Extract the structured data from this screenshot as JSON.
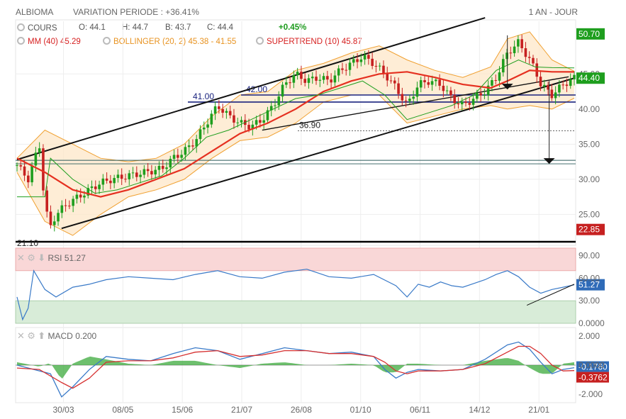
{
  "header": {
    "symbol": "ALBIOMA",
    "variation": "VARIATION PERIODE : +36.41%",
    "period": "1 AN - JOUR"
  },
  "legend": {
    "cours_label": "COURS",
    "open": "O: 44.1",
    "high": "H: 44.7",
    "low": "B: 43.7",
    "close": "C: 44.4",
    "change": "+0.45%",
    "mm": "MM (40)",
    "mm_value": "45.29",
    "bollinger": "BOLLINGER (20, 2)",
    "bollinger_value": "45.38 - 41.55",
    "supertrend": "SUPERTREND (10)",
    "supertrend_value": "45.87"
  },
  "rsi_panel": {
    "label": "RSI",
    "value": "51.27",
    "badge": "51.27"
  },
  "macd_panel": {
    "label": "MACD",
    "value": "0.200",
    "badge1": "-0.1760",
    "badge2": "-0.3762"
  },
  "colors": {
    "close": "#1e9e1e",
    "low": "#c62020",
    "current": "#1e9e1e",
    "mm": "#e53020",
    "bollinger": "#f0a030",
    "supertrend": "#1e9e1e",
    "rsi": "#3a7ac8",
    "macd_blue": "#3a7ac8",
    "macd_red": "#d63030",
    "histogram": "#3caa3c",
    "hline": "#1a237e"
  },
  "chart_data": [
    {
      "type": "candlestick",
      "title": "ALBIOMA",
      "x_ticks": [
        "30/03",
        "08/05",
        "15/06",
        "21/07",
        "26/08",
        "01/10",
        "06/11",
        "14/12",
        "21/01"
      ],
      "y_ticks": [
        "25.00",
        "30.00",
        "35.00",
        "40.00",
        "45.00"
      ],
      "ylim": [
        20.8,
        52.5
      ],
      "price_labels": {
        "high": "50.70",
        "current": "44.40",
        "low": "22.85"
      },
      "annotations": [
        {
          "text": "21.10",
          "value": 21.1
        },
        {
          "text": "41.00",
          "value": 41.0
        },
        {
          "text": "42.00",
          "value": 42.0
        },
        {
          "text": "36.90",
          "value": 36.9
        }
      ],
      "horizontal_levels": [
        21.1,
        41.0,
        42.0,
        36.9,
        32.7,
        32.2
      ],
      "trend_channel": {
        "upper": [
          [
            0.0,
            32.8
          ],
          [
            0.84,
            53.0
          ]
        ],
        "lower": [
          [
            0.08,
            23.0
          ],
          [
            1.0,
            44.4
          ]
        ],
        "inner": [
          [
            0.44,
            37.0
          ],
          [
            0.99,
            44.6
          ]
        ]
      },
      "close": [
        [
          0.0,
          32.0
        ],
        [
          0.02,
          30.0
        ],
        [
          0.03,
          32.5
        ],
        [
          0.04,
          35.0
        ],
        [
          0.05,
          26.0
        ],
        [
          0.06,
          23.2
        ],
        [
          0.07,
          25.0
        ],
        [
          0.09,
          26.5
        ],
        [
          0.11,
          27.5
        ],
        [
          0.13,
          28.5
        ],
        [
          0.15,
          29.5
        ],
        [
          0.17,
          30.0
        ],
        [
          0.2,
          30.5
        ],
        [
          0.23,
          31.0
        ],
        [
          0.26,
          31.5
        ],
        [
          0.28,
          33.0
        ],
        [
          0.3,
          34.0
        ],
        [
          0.32,
          35.5
        ],
        [
          0.34,
          38.0
        ],
        [
          0.36,
          40.5
        ],
        [
          0.38,
          39.0
        ],
        [
          0.4,
          38.0
        ],
        [
          0.42,
          37.5
        ],
        [
          0.44,
          38.5
        ],
        [
          0.46,
          40.5
        ],
        [
          0.48,
          43.5
        ],
        [
          0.5,
          45.0
        ],
        [
          0.52,
          44.0
        ],
        [
          0.54,
          44.5
        ],
        [
          0.56,
          44.0
        ],
        [
          0.58,
          45.5
        ],
        [
          0.6,
          46.5
        ],
        [
          0.62,
          47.5
        ],
        [
          0.64,
          46.5
        ],
        [
          0.66,
          45.0
        ],
        [
          0.68,
          43.0
        ],
        [
          0.7,
          40.5
        ],
        [
          0.72,
          43.5
        ],
        [
          0.74,
          44.0
        ],
        [
          0.76,
          43.5
        ],
        [
          0.78,
          41.5
        ],
        [
          0.8,
          40.5
        ],
        [
          0.82,
          41.5
        ],
        [
          0.84,
          42.5
        ],
        [
          0.86,
          44.5
        ],
        [
          0.88,
          48.0
        ],
        [
          0.9,
          49.5
        ],
        [
          0.92,
          47.0
        ],
        [
          0.93,
          45.5
        ],
        [
          0.94,
          43.5
        ],
        [
          0.96,
          42.0
        ],
        [
          0.98,
          43.5
        ],
        [
          1.0,
          44.4
        ]
      ],
      "mm40": [
        [
          0.0,
          33.0
        ],
        [
          0.05,
          31.0
        ],
        [
          0.1,
          28.5
        ],
        [
          0.15,
          27.5
        ],
        [
          0.2,
          28.5
        ],
        [
          0.25,
          30.0
        ],
        [
          0.3,
          31.5
        ],
        [
          0.35,
          34.0
        ],
        [
          0.4,
          36.5
        ],
        [
          0.45,
          38.0
        ],
        [
          0.5,
          40.0
        ],
        [
          0.55,
          42.5
        ],
        [
          0.6,
          44.0
        ],
        [
          0.65,
          45.0
        ],
        [
          0.7,
          45.3
        ],
        [
          0.75,
          44.5
        ],
        [
          0.8,
          43.5
        ],
        [
          0.85,
          43.0
        ],
        [
          0.88,
          44.0
        ],
        [
          0.92,
          45.5
        ],
        [
          0.96,
          45.3
        ],
        [
          1.0,
          45.29
        ]
      ],
      "bollinger_upper": [
        [
          0.0,
          33.0
        ],
        [
          0.05,
          37.0
        ],
        [
          0.1,
          35.0
        ],
        [
          0.15,
          33.0
        ],
        [
          0.2,
          32.5
        ],
        [
          0.25,
          33.0
        ],
        [
          0.3,
          35.0
        ],
        [
          0.35,
          39.0
        ],
        [
          0.4,
          42.0
        ],
        [
          0.45,
          42.5
        ],
        [
          0.5,
          45.5
        ],
        [
          0.55,
          46.5
        ],
        [
          0.6,
          48.0
        ],
        [
          0.65,
          49.0
        ],
        [
          0.7,
          47.0
        ],
        [
          0.75,
          45.5
        ],
        [
          0.8,
          44.5
        ],
        [
          0.85,
          46.0
        ],
        [
          0.88,
          50.0
        ],
        [
          0.92,
          51.0
        ],
        [
          0.96,
          47.0
        ],
        [
          1.0,
          45.38
        ]
      ],
      "bollinger_lower": [
        [
          0.0,
          31.0
        ],
        [
          0.05,
          24.0
        ],
        [
          0.1,
          22.0
        ],
        [
          0.15,
          25.0
        ],
        [
          0.2,
          27.5
        ],
        [
          0.25,
          28.5
        ],
        [
          0.3,
          30.0
        ],
        [
          0.35,
          33.0
        ],
        [
          0.4,
          35.5
        ],
        [
          0.45,
          36.0
        ],
        [
          0.5,
          38.0
        ],
        [
          0.55,
          41.0
        ],
        [
          0.6,
          42.0
        ],
        [
          0.65,
          42.0
        ],
        [
          0.7,
          38.0
        ],
        [
          0.75,
          39.0
        ],
        [
          0.8,
          40.0
        ],
        [
          0.85,
          40.5
        ],
        [
          0.88,
          40.0
        ],
        [
          0.92,
          40.5
        ],
        [
          0.96,
          40.0
        ],
        [
          1.0,
          41.55
        ]
      ],
      "supertrend": [
        [
          0.0,
          27.5
        ],
        [
          0.05,
          27.5
        ],
        [
          0.06,
          33.0
        ],
        [
          0.1,
          30.0
        ],
        [
          0.14,
          28.0
        ],
        [
          0.18,
          28.5
        ],
        [
          0.22,
          29.5
        ],
        [
          0.26,
          30.5
        ],
        [
          0.3,
          33.0
        ],
        [
          0.34,
          36.0
        ],
        [
          0.38,
          37.0
        ],
        [
          0.42,
          38.5
        ],
        [
          0.46,
          40.0
        ],
        [
          0.5,
          41.5
        ],
        [
          0.54,
          42.0
        ],
        [
          0.58,
          43.0
        ],
        [
          0.62,
          44.0
        ],
        [
          0.66,
          42.0
        ],
        [
          0.7,
          38.5
        ],
        [
          0.74,
          39.5
        ],
        [
          0.78,
          40.5
        ],
        [
          0.82,
          42.0
        ],
        [
          0.86,
          45.5
        ],
        [
          0.9,
          47.0
        ],
        [
          0.93,
          46.0
        ],
        [
          0.96,
          45.9
        ],
        [
          1.0,
          45.87
        ]
      ]
    },
    {
      "type": "line",
      "title": "RSI",
      "y_ticks": [
        "90.00",
        "60.00",
        "30.00",
        "0.0000"
      ],
      "ylim": [
        0,
        100
      ],
      "zones": [
        [
          70,
          100
        ],
        [
          0,
          30
        ]
      ],
      "values": [
        [
          0.0,
          35
        ],
        [
          0.01,
          5
        ],
        [
          0.02,
          20
        ],
        [
          0.03,
          70
        ],
        [
          0.05,
          45
        ],
        [
          0.07,
          35
        ],
        [
          0.1,
          48
        ],
        [
          0.13,
          52
        ],
        [
          0.16,
          58
        ],
        [
          0.2,
          62
        ],
        [
          0.24,
          60
        ],
        [
          0.28,
          58
        ],
        [
          0.32,
          65
        ],
        [
          0.36,
          70
        ],
        [
          0.4,
          62
        ],
        [
          0.44,
          60
        ],
        [
          0.48,
          68
        ],
        [
          0.52,
          72
        ],
        [
          0.56,
          62
        ],
        [
          0.6,
          60
        ],
        [
          0.64,
          65
        ],
        [
          0.68,
          50
        ],
        [
          0.7,
          35
        ],
        [
          0.72,
          52
        ],
        [
          0.74,
          48
        ],
        [
          0.76,
          55
        ],
        [
          0.78,
          50
        ],
        [
          0.8,
          48
        ],
        [
          0.82,
          53
        ],
        [
          0.84,
          58
        ],
        [
          0.86,
          65
        ],
        [
          0.88,
          70
        ],
        [
          0.9,
          62
        ],
        [
          0.92,
          48
        ],
        [
          0.94,
          40
        ],
        [
          0.96,
          45
        ],
        [
          0.98,
          48
        ],
        [
          1.0,
          51.27
        ]
      ]
    },
    {
      "type": "line",
      "title": "MACD",
      "y_ticks": [
        "2.000",
        "0.0000",
        "-2.000"
      ],
      "ylim": [
        -2.6,
        2.6
      ],
      "macd": [
        [
          0.0,
          0.0
        ],
        [
          0.03,
          -0.3
        ],
        [
          0.06,
          -0.6
        ],
        [
          0.08,
          -2.2
        ],
        [
          0.1,
          -1.5
        ],
        [
          0.13,
          -0.3
        ],
        [
          0.16,
          0.6
        ],
        [
          0.2,
          0.4
        ],
        [
          0.24,
          0.3
        ],
        [
          0.28,
          0.8
        ],
        [
          0.32,
          1.2
        ],
        [
          0.36,
          1.0
        ],
        [
          0.4,
          0.4
        ],
        [
          0.44,
          0.8
        ],
        [
          0.48,
          1.2
        ],
        [
          0.52,
          1.0
        ],
        [
          0.56,
          0.8
        ],
        [
          0.6,
          0.9
        ],
        [
          0.64,
          0.6
        ],
        [
          0.66,
          -0.3
        ],
        [
          0.68,
          -0.9
        ],
        [
          0.7,
          -0.5
        ],
        [
          0.72,
          -0.3
        ],
        [
          0.76,
          -0.4
        ],
        [
          0.8,
          -0.3
        ],
        [
          0.84,
          0.4
        ],
        [
          0.88,
          1.4
        ],
        [
          0.9,
          1.6
        ],
        [
          0.92,
          1.1
        ],
        [
          0.94,
          0.2
        ],
        [
          0.96,
          -0.6
        ],
        [
          0.98,
          -0.3
        ],
        [
          1.0,
          -0.176
        ]
      ],
      "signal": [
        [
          0.0,
          -0.2
        ],
        [
          0.04,
          -0.3
        ],
        [
          0.08,
          -1.2
        ],
        [
          0.1,
          -1.6
        ],
        [
          0.13,
          -0.9
        ],
        [
          0.16,
          0.2
        ],
        [
          0.2,
          0.3
        ],
        [
          0.24,
          0.3
        ],
        [
          0.28,
          0.5
        ],
        [
          0.32,
          0.9
        ],
        [
          0.36,
          1.0
        ],
        [
          0.4,
          0.6
        ],
        [
          0.44,
          0.7
        ],
        [
          0.48,
          1.0
        ],
        [
          0.52,
          1.0
        ],
        [
          0.56,
          0.8
        ],
        [
          0.6,
          0.8
        ],
        [
          0.64,
          0.6
        ],
        [
          0.66,
          0.2
        ],
        [
          0.68,
          -0.4
        ],
        [
          0.7,
          -0.6
        ],
        [
          0.72,
          -0.4
        ],
        [
          0.76,
          -0.4
        ],
        [
          0.8,
          -0.3
        ],
        [
          0.84,
          0.1
        ],
        [
          0.88,
          0.9
        ],
        [
          0.9,
          1.3
        ],
        [
          0.92,
          1.3
        ],
        [
          0.94,
          0.8
        ],
        [
          0.96,
          0.0
        ],
        [
          0.98,
          -0.4
        ],
        [
          1.0,
          -0.376
        ]
      ]
    }
  ]
}
